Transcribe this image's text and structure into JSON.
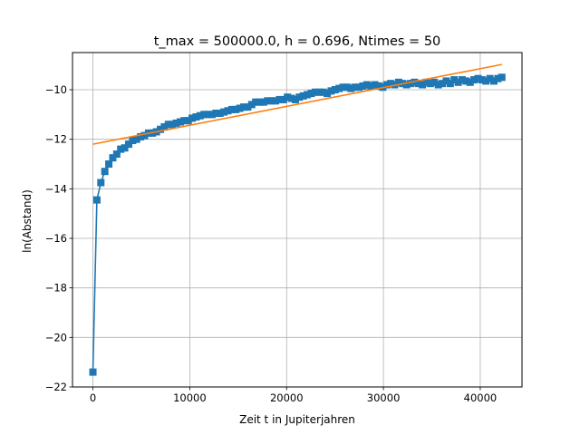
{
  "chart_data": {
    "type": "line",
    "title": "t_max = 500000.0, h = 0.696, Ntimes = 50",
    "xlabel": "Zeit t in Jupiterjahren",
    "ylabel": "ln(Abstand)",
    "xlim": [
      -2110,
      44310
    ],
    "ylim": [
      -22.0,
      -8.5
    ],
    "xticks": [
      0,
      10000,
      20000,
      30000,
      40000
    ],
    "yticks": [
      -22,
      -20,
      -18,
      -16,
      -14,
      -12,
      -10
    ],
    "xtick_labels": [
      "0",
      "10000",
      "20000",
      "30000",
      "40000"
    ],
    "ytick_labels": [
      "−22",
      "−20",
      "−18",
      "−16",
      "−14",
      "−12",
      "−10"
    ],
    "grid": true,
    "series": [
      {
        "color": "#1f77b4",
        "marker": "square",
        "x": [
          0,
          410,
          820,
          1230,
          1640,
          2050,
          2460,
          2870,
          3280,
          3690,
          4100,
          4510,
          4920,
          5330,
          5740,
          6150,
          6560,
          6970,
          7380,
          7790,
          8200,
          8610,
          9020,
          9430,
          9840,
          10250,
          10660,
          11070,
          11480,
          11890,
          12300,
          12710,
          13120,
          13530,
          13940,
          14350,
          14760,
          15170,
          15580,
          15990,
          16400,
          16810,
          17220,
          17630,
          18040,
          18450,
          18860,
          19270,
          19680,
          20090,
          20500,
          20910,
          21320,
          21730,
          22140,
          22550,
          22960,
          23370,
          23780,
          24190,
          24600,
          25010,
          25420,
          25830,
          26240,
          26650,
          27060,
          27470,
          27880,
          28290,
          28700,
          29110,
          29520,
          29930,
          30340,
          30750,
          31160,
          31570,
          31980,
          32390,
          32800,
          33210,
          33620,
          34030,
          34440,
          34850,
          35260,
          35670,
          36080,
          36490,
          36900,
          37310,
          37720,
          38130,
          38540,
          38950,
          39360,
          39770,
          40180,
          40590,
          41000,
          41410,
          41820,
          42230
        ],
        "y": [
          -21.4,
          -14.45,
          -13.75,
          -13.3,
          -13.0,
          -12.75,
          -12.6,
          -12.4,
          -12.35,
          -12.2,
          -12.05,
          -12.0,
          -11.9,
          -11.85,
          -11.75,
          -11.75,
          -11.7,
          -11.6,
          -11.5,
          -11.4,
          -11.4,
          -11.35,
          -11.3,
          -11.25,
          -11.25,
          -11.15,
          -11.1,
          -11.05,
          -11.0,
          -11.0,
          -11.0,
          -10.95,
          -10.95,
          -10.9,
          -10.85,
          -10.8,
          -10.8,
          -10.75,
          -10.7,
          -10.7,
          -10.6,
          -10.5,
          -10.5,
          -10.5,
          -10.45,
          -10.45,
          -10.45,
          -10.4,
          -10.4,
          -10.3,
          -10.35,
          -10.4,
          -10.3,
          -10.25,
          -10.2,
          -10.15,
          -10.1,
          -10.1,
          -10.1,
          -10.15,
          -10.05,
          -10.0,
          -9.95,
          -9.9,
          -9.9,
          -9.95,
          -9.9,
          -9.9,
          -9.85,
          -9.8,
          -9.85,
          -9.8,
          -9.85,
          -9.9,
          -9.8,
          -9.75,
          -9.8,
          -9.7,
          -9.75,
          -9.8,
          -9.75,
          -9.7,
          -9.75,
          -9.8,
          -9.7,
          -9.75,
          -9.7,
          -9.8,
          -9.75,
          -9.65,
          -9.75,
          -9.6,
          -9.7,
          -9.6,
          -9.65,
          -9.7,
          -9.6,
          -9.55,
          -9.6,
          -9.65,
          -9.55,
          -9.65,
          -9.55,
          -9.5
        ]
      },
      {
        "color": "#ff7f0e",
        "marker": "none",
        "x": [
          0,
          42230
        ],
        "y": [
          -12.2,
          -8.98
        ]
      }
    ]
  }
}
